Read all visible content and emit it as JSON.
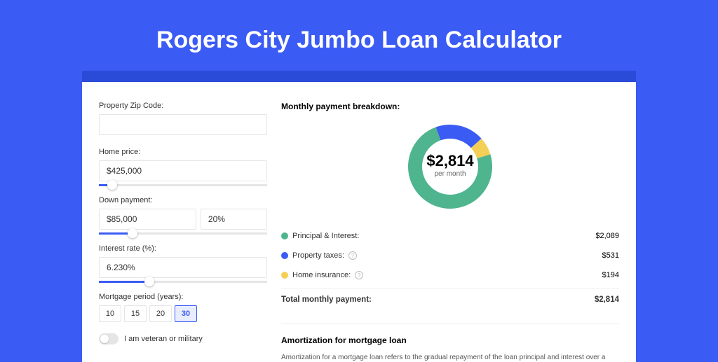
{
  "page": {
    "title": "Rogers City Jumbo Loan Calculator",
    "bg_color": "#3b5bf5",
    "header_bar_color": "#2a4ad8",
    "card_bg": "#ffffff"
  },
  "form": {
    "zip": {
      "label": "Property Zip Code:",
      "value": ""
    },
    "home_price": {
      "label": "Home price:",
      "value": "$425,000",
      "slider_pct": 8
    },
    "down_payment": {
      "label": "Down payment:",
      "amount": "$85,000",
      "percent": "20%",
      "slider_pct": 20
    },
    "interest": {
      "label": "Interest rate (%):",
      "value": "6.230%",
      "slider_pct": 30
    },
    "period": {
      "label": "Mortgage period (years):",
      "options": [
        "10",
        "15",
        "20",
        "30"
      ],
      "selected_index": 3
    },
    "veteran": {
      "label": "I am veteran or military",
      "checked": false
    }
  },
  "breakdown": {
    "title": "Monthly payment breakdown:",
    "total_value": "$2,814",
    "per_month": "per month",
    "donut": {
      "type": "donut",
      "slices": [
        {
          "label": "Principal & Interest:",
          "value": 2089,
          "value_str": "$2,089",
          "color": "#4eb58e",
          "pct": 74.2
        },
        {
          "label": "Property taxes:",
          "value": 531,
          "value_str": "$531",
          "color": "#3b5bf5",
          "pct": 18.9,
          "info": true
        },
        {
          "label": "Home insurance:",
          "value": 194,
          "value_str": "$194",
          "color": "#f3cf56",
          "pct": 6.9,
          "info": true
        }
      ],
      "outer_radius": 60,
      "inner_radius": 40,
      "bg": "#ffffff"
    },
    "total_label": "Total monthly payment:",
    "total_str": "$2,814"
  },
  "amortization": {
    "title": "Amortization for mortgage loan",
    "body": "Amortization for a mortgage loan refers to the gradual repayment of the loan principal and interest over a specified"
  },
  "colors": {
    "accent": "#3b5bf5",
    "border": "#e5e5e5",
    "text": "#333333",
    "muted": "#666666"
  }
}
